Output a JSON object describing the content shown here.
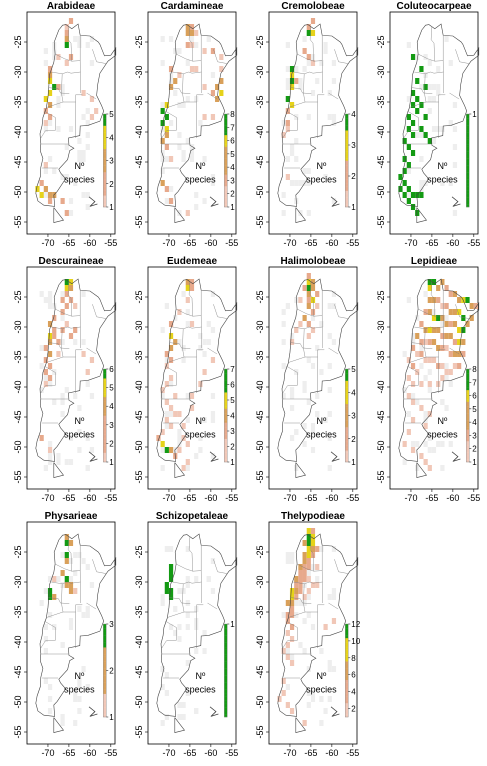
{
  "legend_label_line1": "Nº",
  "legend_label_line2": "species",
  "lon_ticks": [
    "-70",
    "-65",
    "-60",
    "-55"
  ],
  "lat_ticks": [
    "-25",
    "-30",
    "-35",
    "-40",
    "-45",
    "-50",
    "-55"
  ],
  "colors": {
    "empty": "#eeeeee",
    "low": "#f1c7b7",
    "midlow": "#e7a98c",
    "mid": "#d9a05a",
    "high": "#e6d21a",
    "top": "#139a13",
    "outline": "#444444"
  },
  "panels": [
    {
      "title": "Arabideae",
      "legend_ticks": [
        "1",
        "2",
        "3",
        "4",
        "5"
      ],
      "max": 5
    },
    {
      "title": "Cardamineae",
      "legend_ticks": [
        "1",
        "2",
        "3",
        "4",
        "5",
        "6",
        "7",
        "8"
      ],
      "max": 8
    },
    {
      "title": "Cremolobeae",
      "legend_ticks": [
        "1",
        "2",
        "3",
        "4"
      ],
      "max": 4
    },
    {
      "title": "Coluteocarpeae",
      "legend_ticks": [
        "1"
      ],
      "max": 1
    },
    {
      "title": "Descuraineae",
      "legend_ticks": [
        "1",
        "2",
        "3",
        "4",
        "5",
        "6"
      ],
      "max": 6
    },
    {
      "title": "Eudemeae",
      "legend_ticks": [
        "1",
        "2",
        "3",
        "4",
        "5",
        "6",
        "7"
      ],
      "max": 7
    },
    {
      "title": "Halimolobeae",
      "legend_ticks": [
        "1",
        "2",
        "3",
        "4",
        "5"
      ],
      "max": 5
    },
    {
      "title": "Lepidieae",
      "legend_ticks": [
        "1",
        "2",
        "3",
        "4",
        "5",
        "6",
        "7",
        "8"
      ],
      "max": 8
    },
    {
      "title": "Physarieae",
      "legend_ticks": [
        "1",
        "2",
        "3"
      ],
      "max": 3
    },
    {
      "title": "Schizopetaleae",
      "legend_ticks": [
        "1"
      ],
      "max": 1
    },
    {
      "title": "Thelypodieae",
      "legend_ticks": [
        "2",
        "4",
        "6",
        "8",
        "10",
        "12"
      ],
      "max": 12
    }
  ]
}
